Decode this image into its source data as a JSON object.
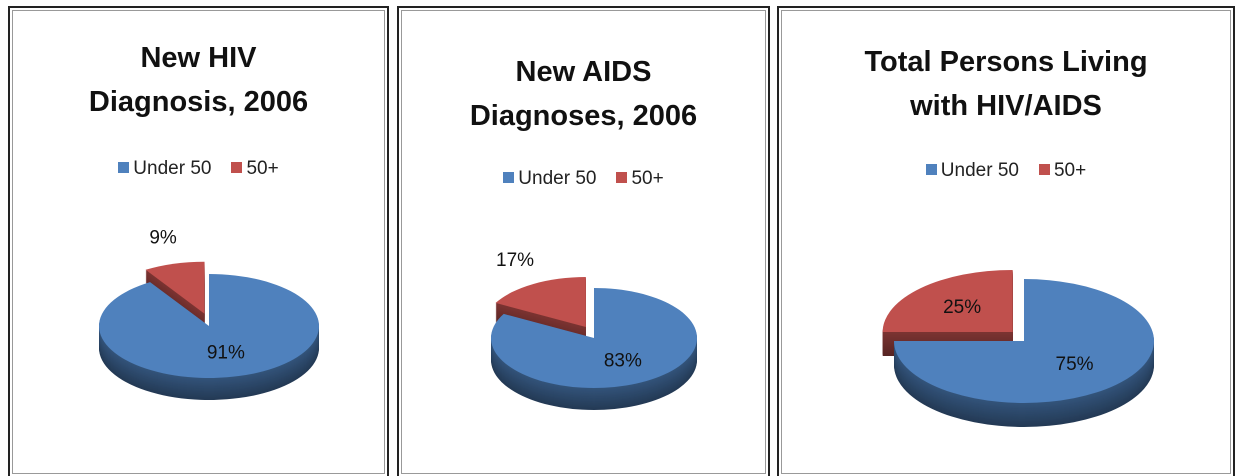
{
  "chart_data": [
    {
      "type": "pie",
      "title": "New HIV Diagnosis, 2006",
      "categories": [
        "Under 50",
        "50+"
      ],
      "values": [
        91,
        9
      ],
      "value_labels": [
        "91%",
        "9%"
      ],
      "colors": [
        "#4f81bd",
        "#c0504d"
      ],
      "legend": "top"
    },
    {
      "type": "pie",
      "title": "New AIDS Diagnoses, 2006",
      "categories": [
        "Under 50",
        "50+"
      ],
      "values": [
        83,
        17
      ],
      "value_labels": [
        "83%",
        "17%"
      ],
      "colors": [
        "#4f81bd",
        "#c0504d"
      ],
      "legend": "top"
    },
    {
      "type": "pie",
      "title": "Total Persons Living with HIV/AIDS",
      "categories": [
        "Under 50",
        "50+"
      ],
      "values": [
        75,
        25
      ],
      "value_labels": [
        "75%",
        "25%"
      ],
      "colors": [
        "#4f81bd",
        "#c0504d"
      ],
      "legend": "top"
    }
  ]
}
